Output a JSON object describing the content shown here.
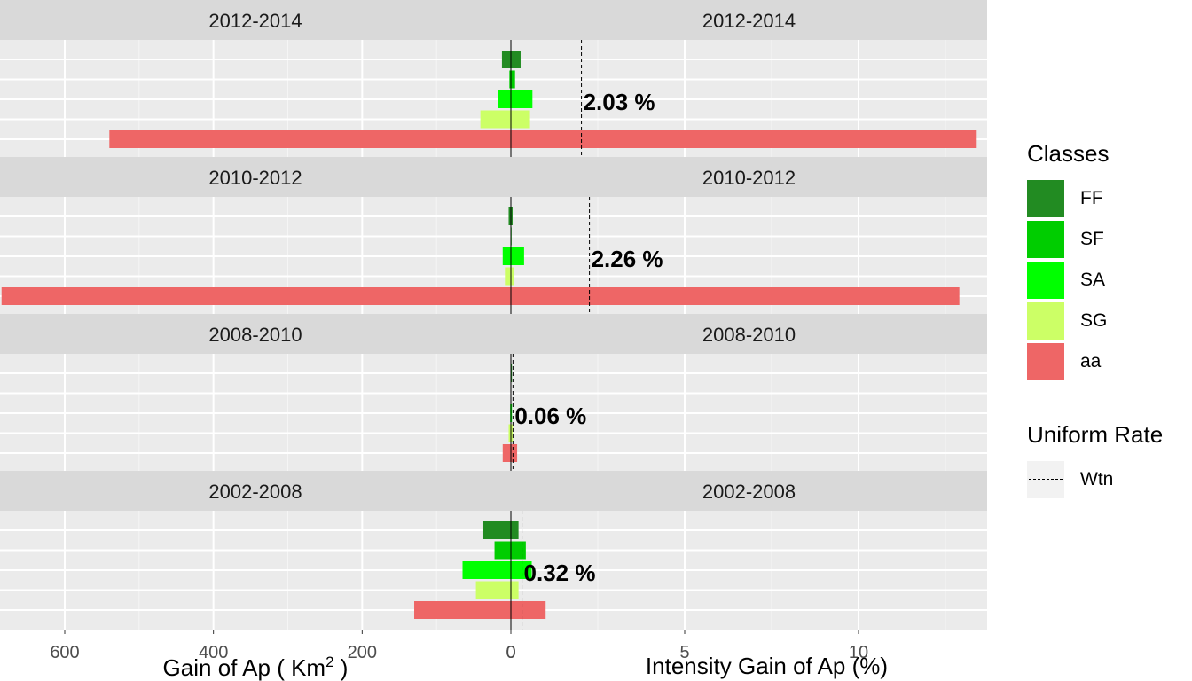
{
  "chart_data": {
    "type": "bar",
    "orientation": "horizontal",
    "panels": [
      "2012-2014",
      "2010-2012",
      "2008-2010",
      "2002-2008"
    ],
    "classes": [
      "FF",
      "SF",
      "SA",
      "SG",
      "aa"
    ],
    "colors": {
      "FF": "#228b22",
      "SF": "#00cd00",
      "SA": "#00ff00",
      "SG": "#ccff66",
      "aa": "#ee6666"
    },
    "left_axis": {
      "label": "Gain of Ap ( Km",
      "label_sup": "2",
      "label_end": " )",
      "ticks": [
        "600",
        "400",
        "200",
        "0"
      ],
      "tick_values": [
        600,
        400,
        200,
        0
      ],
      "xlim": [
        690,
        0
      ],
      "reversed": true
    },
    "right_axis": {
      "label": "Intensity Gain of Ap (%)",
      "ticks": [
        "0",
        "5",
        "10"
      ],
      "tick_values": [
        0,
        5,
        10
      ],
      "xlim": [
        0,
        13.5
      ]
    },
    "gain_km2": {
      "2012-2014": {
        "FF": 12,
        "SF": 2,
        "SA": 17,
        "SG": 41,
        "aa": 540
      },
      "2010-2012": {
        "FF": 3,
        "SF": 0.5,
        "SA": 11,
        "SG": 8,
        "aa": 685
      },
      "2008-2010": {
        "FF": 0.5,
        "SF": 0.2,
        "SA": 1,
        "SG": 3,
        "aa": 11
      },
      "2002-2008": {
        "FF": 37,
        "SF": 22,
        "SA": 65,
        "SG": 47,
        "aa": 130
      }
    },
    "intensity_pct": {
      "2012-2014": {
        "FF": 0.28,
        "SF": 0.12,
        "SA": 0.62,
        "SG": 0.55,
        "aa": 13.4
      },
      "2010-2012": {
        "FF": 0.05,
        "SF": 0.02,
        "SA": 0.38,
        "SG": 0.1,
        "aa": 12.9
      },
      "2008-2010": {
        "FF": 0.03,
        "SF": 0.01,
        "SA": 0.03,
        "SG": 0.06,
        "aa": 0.18
      },
      "2002-2008": {
        "FF": 0.22,
        "SF": 0.43,
        "SA": 0.6,
        "SG": 0.22,
        "aa": 1.0
      }
    },
    "uniform_rate": {
      "2012-2014": {
        "value": 2.03,
        "label": "2.03 %"
      },
      "2010-2012": {
        "value": 2.26,
        "label": "2.26 %"
      },
      "2008-2010": {
        "value": 0.06,
        "label": "0.06 %"
      },
      "2002-2008": {
        "value": 0.32,
        "label": "0.32 %"
      }
    },
    "legend": {
      "title": "Classes",
      "entries": [
        "FF",
        "SF",
        "SA",
        "SG",
        "aa"
      ],
      "rate_title": "Uniform Rate",
      "rate_entry": "Wtn",
      "position": "right"
    },
    "grid": true
  }
}
